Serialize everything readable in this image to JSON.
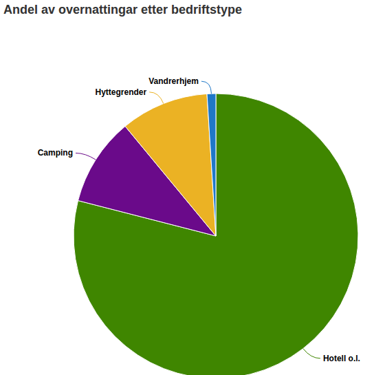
{
  "chart_data": {
    "type": "pie",
    "title": "Andel av overnattingar etter bedriftstype",
    "categories": [
      "Hotell o.l.",
      "Camping",
      "Hyttegrender",
      "Vandrerhjem"
    ],
    "values": [
      79,
      10,
      10,
      1
    ],
    "colors": [
      "#3f8600",
      "#6a0a8a",
      "#ebb224",
      "#1f78c8"
    ],
    "data_labels": false
  }
}
